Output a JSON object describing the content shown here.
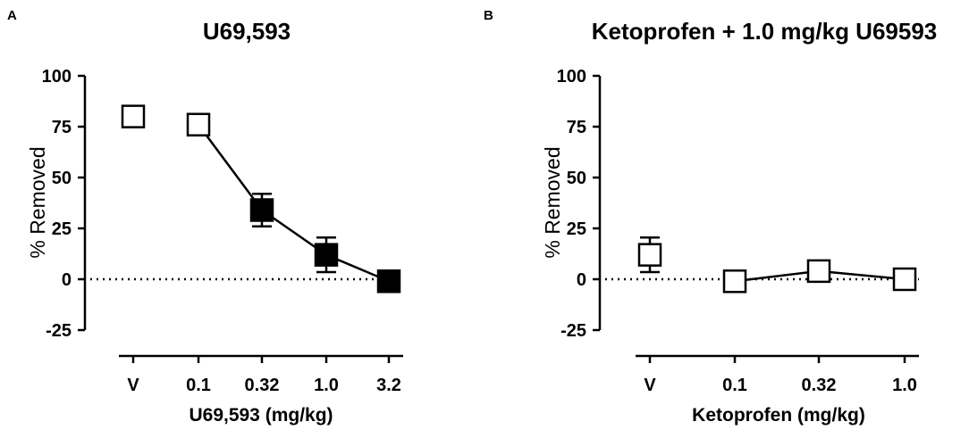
{
  "chart_data": [
    {
      "panel": "A",
      "type": "line",
      "title": "U69,593",
      "xlabel": "U69,593 (mg/kg)",
      "ylabel": "% Removed",
      "ylim": [
        -25,
        100
      ],
      "yticks": [
        -25,
        0,
        25,
        50,
        75,
        100
      ],
      "categories": [
        "V",
        "0.1",
        "0.32",
        "1.0",
        "3.2"
      ],
      "series": [
        {
          "name": "U69,593",
          "points": [
            {
              "cat": "V",
              "value": 80,
              "err": 0,
              "filled": false,
              "connected": false
            },
            {
              "cat": "0.1",
              "value": 76,
              "err": 0,
              "filled": false,
              "connected": true
            },
            {
              "cat": "0.32",
              "value": 34,
              "err": 8,
              "filled": true,
              "connected": true
            },
            {
              "cat": "1.0",
              "value": 12,
              "err": 8.5,
              "filled": true,
              "connected": true
            },
            {
              "cat": "3.2",
              "value": -1,
              "err": 0,
              "filled": true,
              "connected": true
            }
          ]
        }
      ],
      "zero_line": true,
      "colors": {
        "marker": "#000000",
        "line": "#000000"
      }
    },
    {
      "panel": "B",
      "type": "line",
      "title": "Ketoprofen + 1.0 mg/kg U69593",
      "xlabel": "Ketoprofen (mg/kg)",
      "ylabel": "% Removed",
      "ylim": [
        -25,
        100
      ],
      "yticks": [
        -25,
        0,
        25,
        50,
        75,
        100
      ],
      "categories": [
        "V",
        "0.1",
        "0.32",
        "1.0"
      ],
      "series": [
        {
          "name": "Ketoprofen + U69593",
          "points": [
            {
              "cat": "V",
              "value": 12,
              "err": 8.5,
              "filled": false,
              "connected": false
            },
            {
              "cat": "0.1",
              "value": -1,
              "err": 0,
              "filled": false,
              "connected": true
            },
            {
              "cat": "0.32",
              "value": 4,
              "err": 0,
              "filled": false,
              "connected": true
            },
            {
              "cat": "1.0",
              "value": 0,
              "err": 0,
              "filled": false,
              "connected": true
            }
          ]
        }
      ],
      "zero_line": true,
      "colors": {
        "marker": "#000000",
        "line": "#000000"
      }
    }
  ]
}
